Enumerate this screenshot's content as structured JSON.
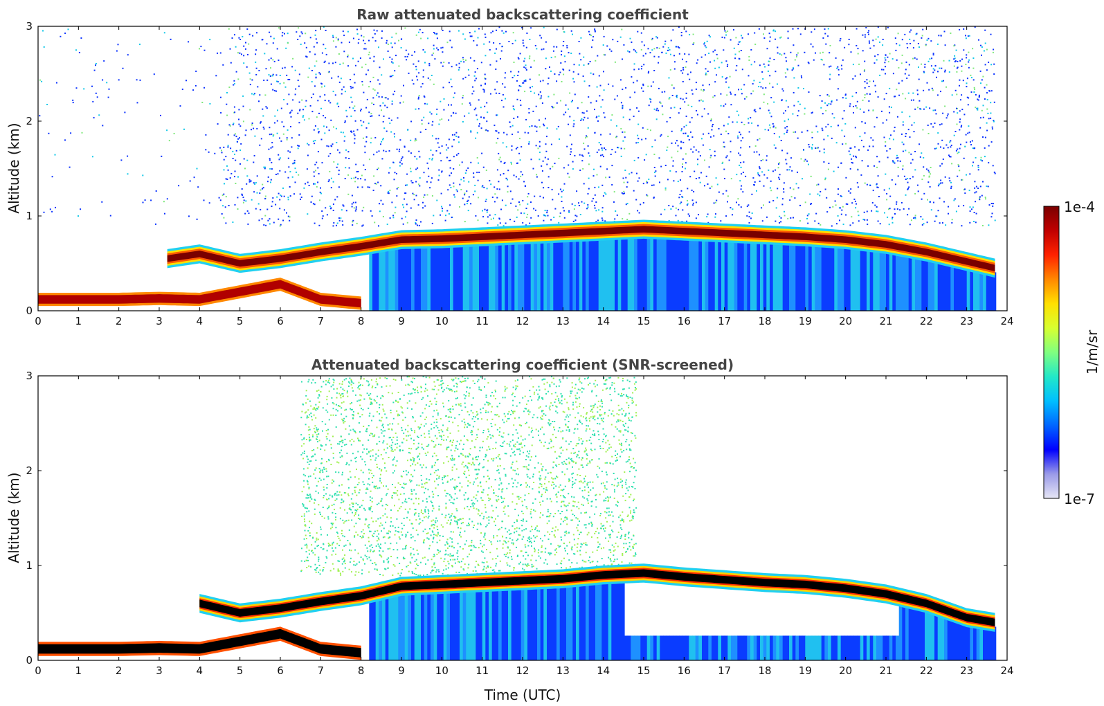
{
  "chart_data": [
    {
      "type": "heatmap",
      "title": "Raw attenuated backscattering coefficient",
      "xlabel": "",
      "ylabel": "Altitude (km)",
      "xlim": [
        0,
        24
      ],
      "ylim": [
        0,
        3
      ],
      "x_ticks": [
        "0",
        "1",
        "2",
        "3",
        "4",
        "5",
        "6",
        "7",
        "8",
        "9",
        "10",
        "11",
        "12",
        "13",
        "14",
        "15",
        "16",
        "17",
        "18",
        "19",
        "20",
        "21",
        "22",
        "23",
        "24"
      ],
      "y_ticks": [
        "0",
        "1",
        "2",
        "3"
      ],
      "data_end_time": 23.7,
      "layers": [
        {
          "feature": "boundary layer top (strong backscatter)",
          "time": [
            3.2,
            4,
            5,
            6,
            7,
            8,
            9,
            10,
            11,
            12,
            13,
            14,
            15,
            16,
            17,
            18,
            19,
            20,
            21,
            22,
            23,
            23.7
          ],
          "altitude_km": [
            0.55,
            0.6,
            0.5,
            0.55,
            0.62,
            0.68,
            0.75,
            0.76,
            0.78,
            0.8,
            0.82,
            0.84,
            0.86,
            0.84,
            0.82,
            0.8,
            0.78,
            0.75,
            0.7,
            0.62,
            0.52,
            0.45
          ]
        },
        {
          "feature": "nocturnal surface layer",
          "time": [
            0,
            1,
            2,
            3,
            4,
            5,
            6,
            7,
            8
          ],
          "altitude_km": [
            0.12,
            0.12,
            0.12,
            0.13,
            0.12,
            0.2,
            0.28,
            0.12,
            0.08
          ]
        }
      ],
      "noise": "random low-SNR returns above boundary layer, mostly from ~5 to 23.7 UTC"
    },
    {
      "type": "heatmap",
      "title": "Attenuated backscattering coefficient (SNR-screened)",
      "xlabel": "Time (UTC)",
      "ylabel": "Altitude (km)",
      "xlim": [
        0,
        24
      ],
      "ylim": [
        0,
        3
      ],
      "x_ticks": [
        "0",
        "1",
        "2",
        "3",
        "4",
        "5",
        "6",
        "7",
        "8",
        "9",
        "10",
        "11",
        "12",
        "13",
        "14",
        "15",
        "16",
        "17",
        "18",
        "19",
        "20",
        "21",
        "22",
        "23",
        "24"
      ],
      "y_ticks": [
        "0",
        "1",
        "2",
        "3"
      ],
      "data_end_time": 23.7,
      "layers": [
        {
          "feature": "boundary layer top (saturated, shown black)",
          "time": [
            4,
            5,
            6,
            7,
            8,
            9,
            10,
            11,
            12,
            13,
            14,
            15,
            16,
            17,
            18,
            19,
            20,
            21,
            22,
            23,
            23.7
          ],
          "altitude_km": [
            0.6,
            0.5,
            0.55,
            0.62,
            0.68,
            0.78,
            0.8,
            0.82,
            0.84,
            0.86,
            0.9,
            0.92,
            0.88,
            0.85,
            0.82,
            0.8,
            0.76,
            0.7,
            0.6,
            0.45,
            0.4
          ]
        },
        {
          "feature": "nocturnal surface layer",
          "time": [
            0,
            1,
            2,
            3,
            4,
            5,
            6,
            7,
            8
          ],
          "altitude_km": [
            0.12,
            0.12,
            0.12,
            0.13,
            0.12,
            0.2,
            0.28,
            0.12,
            0.08
          ]
        }
      ],
      "noise": "screened aerosol returns above boundary layer mainly 7 to 14.5 UTC"
    }
  ],
  "colorbar": {
    "label": "1/m/sr",
    "max_label": "1e-4",
    "min_label": "1e-7",
    "scale": "log",
    "range": [
      1e-07,
      0.0001
    ],
    "colormap": "jet",
    "stops": [
      "#e6e6f5",
      "#9a9ae8",
      "#0000ff",
      "#0066ff",
      "#00bfff",
      "#22e8c8",
      "#80ff80",
      "#d8ff30",
      "#ffe000",
      "#ff8800",
      "#ff2200",
      "#c00000",
      "#7a0000"
    ]
  }
}
